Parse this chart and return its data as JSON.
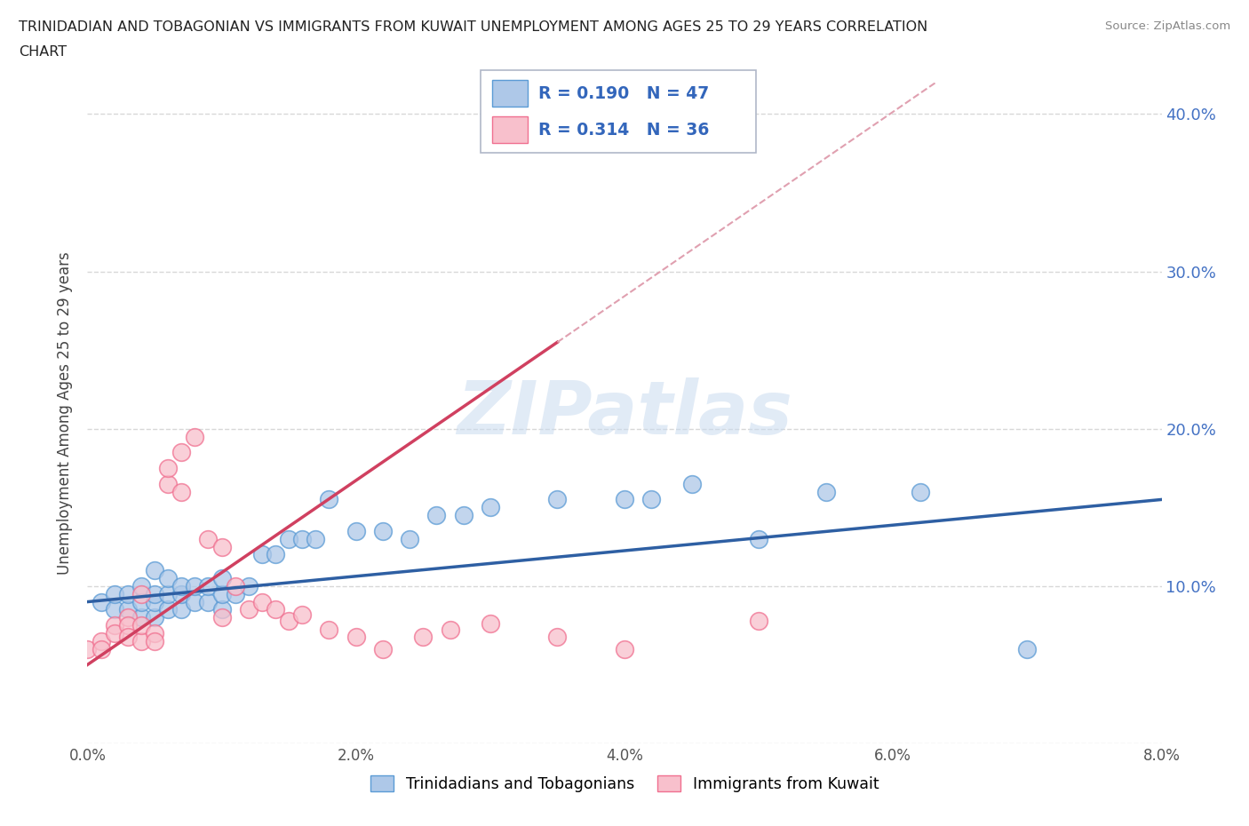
{
  "title_line1": "TRINIDADIAN AND TOBAGONIAN VS IMMIGRANTS FROM KUWAIT UNEMPLOYMENT AMONG AGES 25 TO 29 YEARS CORRELATION",
  "title_line2": "CHART",
  "source": "Source: ZipAtlas.com",
  "ylabel": "Unemployment Among Ages 25 to 29 years",
  "legend_label1": "Trinidadians and Tobagonians",
  "legend_label2": "Immigrants from Kuwait",
  "R1": 0.19,
  "N1": 47,
  "R2": 0.314,
  "N2": 36,
  "color1_edge": "#5b9bd5",
  "color2_edge": "#f07090",
  "color1_fill": "#aec8e8",
  "color2_fill": "#f8c0cc",
  "trendline1_color": "#2e5fa3",
  "trendline2_color": "#d04060",
  "trendline2_dash_color": "#e0a0b0",
  "xlim": [
    0.0,
    0.08
  ],
  "ylim": [
    0.0,
    0.42
  ],
  "xticks": [
    0.0,
    0.02,
    0.04,
    0.06,
    0.08
  ],
  "yticks": [
    0.0,
    0.1,
    0.2,
    0.3,
    0.4
  ],
  "xtick_labels": [
    "0.0%",
    "2.0%",
    "4.0%",
    "6.0%",
    "8.0%"
  ],
  "ytick_labels_right": [
    "",
    "10.0%",
    "20.0%",
    "30.0%",
    "40.0%"
  ],
  "scatter1_x": [
    0.001,
    0.002,
    0.002,
    0.003,
    0.003,
    0.004,
    0.004,
    0.004,
    0.005,
    0.005,
    0.005,
    0.005,
    0.006,
    0.006,
    0.006,
    0.007,
    0.007,
    0.007,
    0.008,
    0.008,
    0.009,
    0.009,
    0.01,
    0.01,
    0.01,
    0.011,
    0.012,
    0.013,
    0.014,
    0.015,
    0.016,
    0.017,
    0.018,
    0.02,
    0.022,
    0.024,
    0.026,
    0.028,
    0.03,
    0.035,
    0.04,
    0.042,
    0.045,
    0.05,
    0.055,
    0.062,
    0.07
  ],
  "scatter1_y": [
    0.09,
    0.085,
    0.095,
    0.085,
    0.095,
    0.08,
    0.09,
    0.1,
    0.08,
    0.09,
    0.095,
    0.11,
    0.085,
    0.095,
    0.105,
    0.085,
    0.095,
    0.1,
    0.09,
    0.1,
    0.09,
    0.1,
    0.085,
    0.095,
    0.105,
    0.095,
    0.1,
    0.12,
    0.12,
    0.13,
    0.13,
    0.13,
    0.155,
    0.135,
    0.135,
    0.13,
    0.145,
    0.145,
    0.15,
    0.155,
    0.155,
    0.155,
    0.165,
    0.13,
    0.16,
    0.16,
    0.06
  ],
  "scatter2_x": [
    0.0,
    0.001,
    0.001,
    0.002,
    0.002,
    0.003,
    0.003,
    0.003,
    0.004,
    0.004,
    0.004,
    0.005,
    0.005,
    0.006,
    0.006,
    0.007,
    0.007,
    0.008,
    0.009,
    0.01,
    0.01,
    0.011,
    0.012,
    0.013,
    0.014,
    0.015,
    0.016,
    0.018,
    0.02,
    0.022,
    0.025,
    0.027,
    0.03,
    0.035,
    0.04,
    0.05
  ],
  "scatter2_y": [
    0.06,
    0.065,
    0.06,
    0.075,
    0.07,
    0.08,
    0.075,
    0.068,
    0.065,
    0.075,
    0.095,
    0.07,
    0.065,
    0.165,
    0.175,
    0.16,
    0.185,
    0.195,
    0.13,
    0.125,
    0.08,
    0.1,
    0.085,
    0.09,
    0.085,
    0.078,
    0.082,
    0.072,
    0.068,
    0.06,
    0.068,
    0.072,
    0.076,
    0.068,
    0.06,
    0.078
  ],
  "watermark": "ZIPatlas",
  "background_color": "#ffffff",
  "grid_color": "#d8d8d8"
}
